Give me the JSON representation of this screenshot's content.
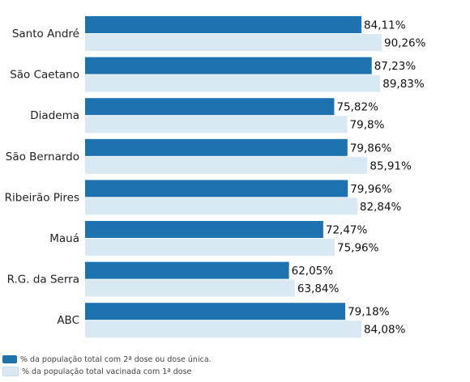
{
  "chart_data": {
    "type": "bar",
    "orientation": "horizontal",
    "categories": [
      "Santo André",
      "São Caetano",
      "Diadema",
      "São Bernardo",
      "Ribeirão Pires",
      "Mauá",
      "R.G. da Serra",
      "ABC"
    ],
    "series": [
      {
        "name": "% da população total com 2ª dose ou dose única.",
        "color": "#1f72b0",
        "values": [
          84.11,
          87.23,
          75.82,
          79.86,
          79.96,
          72.47,
          62.05,
          79.18
        ],
        "labels": [
          "84,11%",
          "87,23%",
          "75,82%",
          "79,86%",
          "79,96%",
          "72,47%",
          "62,05%",
          "79,18%"
        ]
      },
      {
        "name": "% da população total vacinada com 1ª dose",
        "color": "#d8e9f4",
        "values": [
          90.26,
          89.83,
          79.8,
          85.91,
          82.84,
          75.96,
          63.84,
          84.08
        ],
        "labels": [
          "90,26%",
          "89,83%",
          "79,8%",
          "85,91%",
          "82,84%",
          "75,96%",
          "63,84%",
          "84,08%"
        ]
      }
    ],
    "title": "",
    "xlabel": "",
    "ylabel": "",
    "xlim": [
      0,
      100
    ],
    "legend_position": "bottom-left",
    "grid": false
  }
}
